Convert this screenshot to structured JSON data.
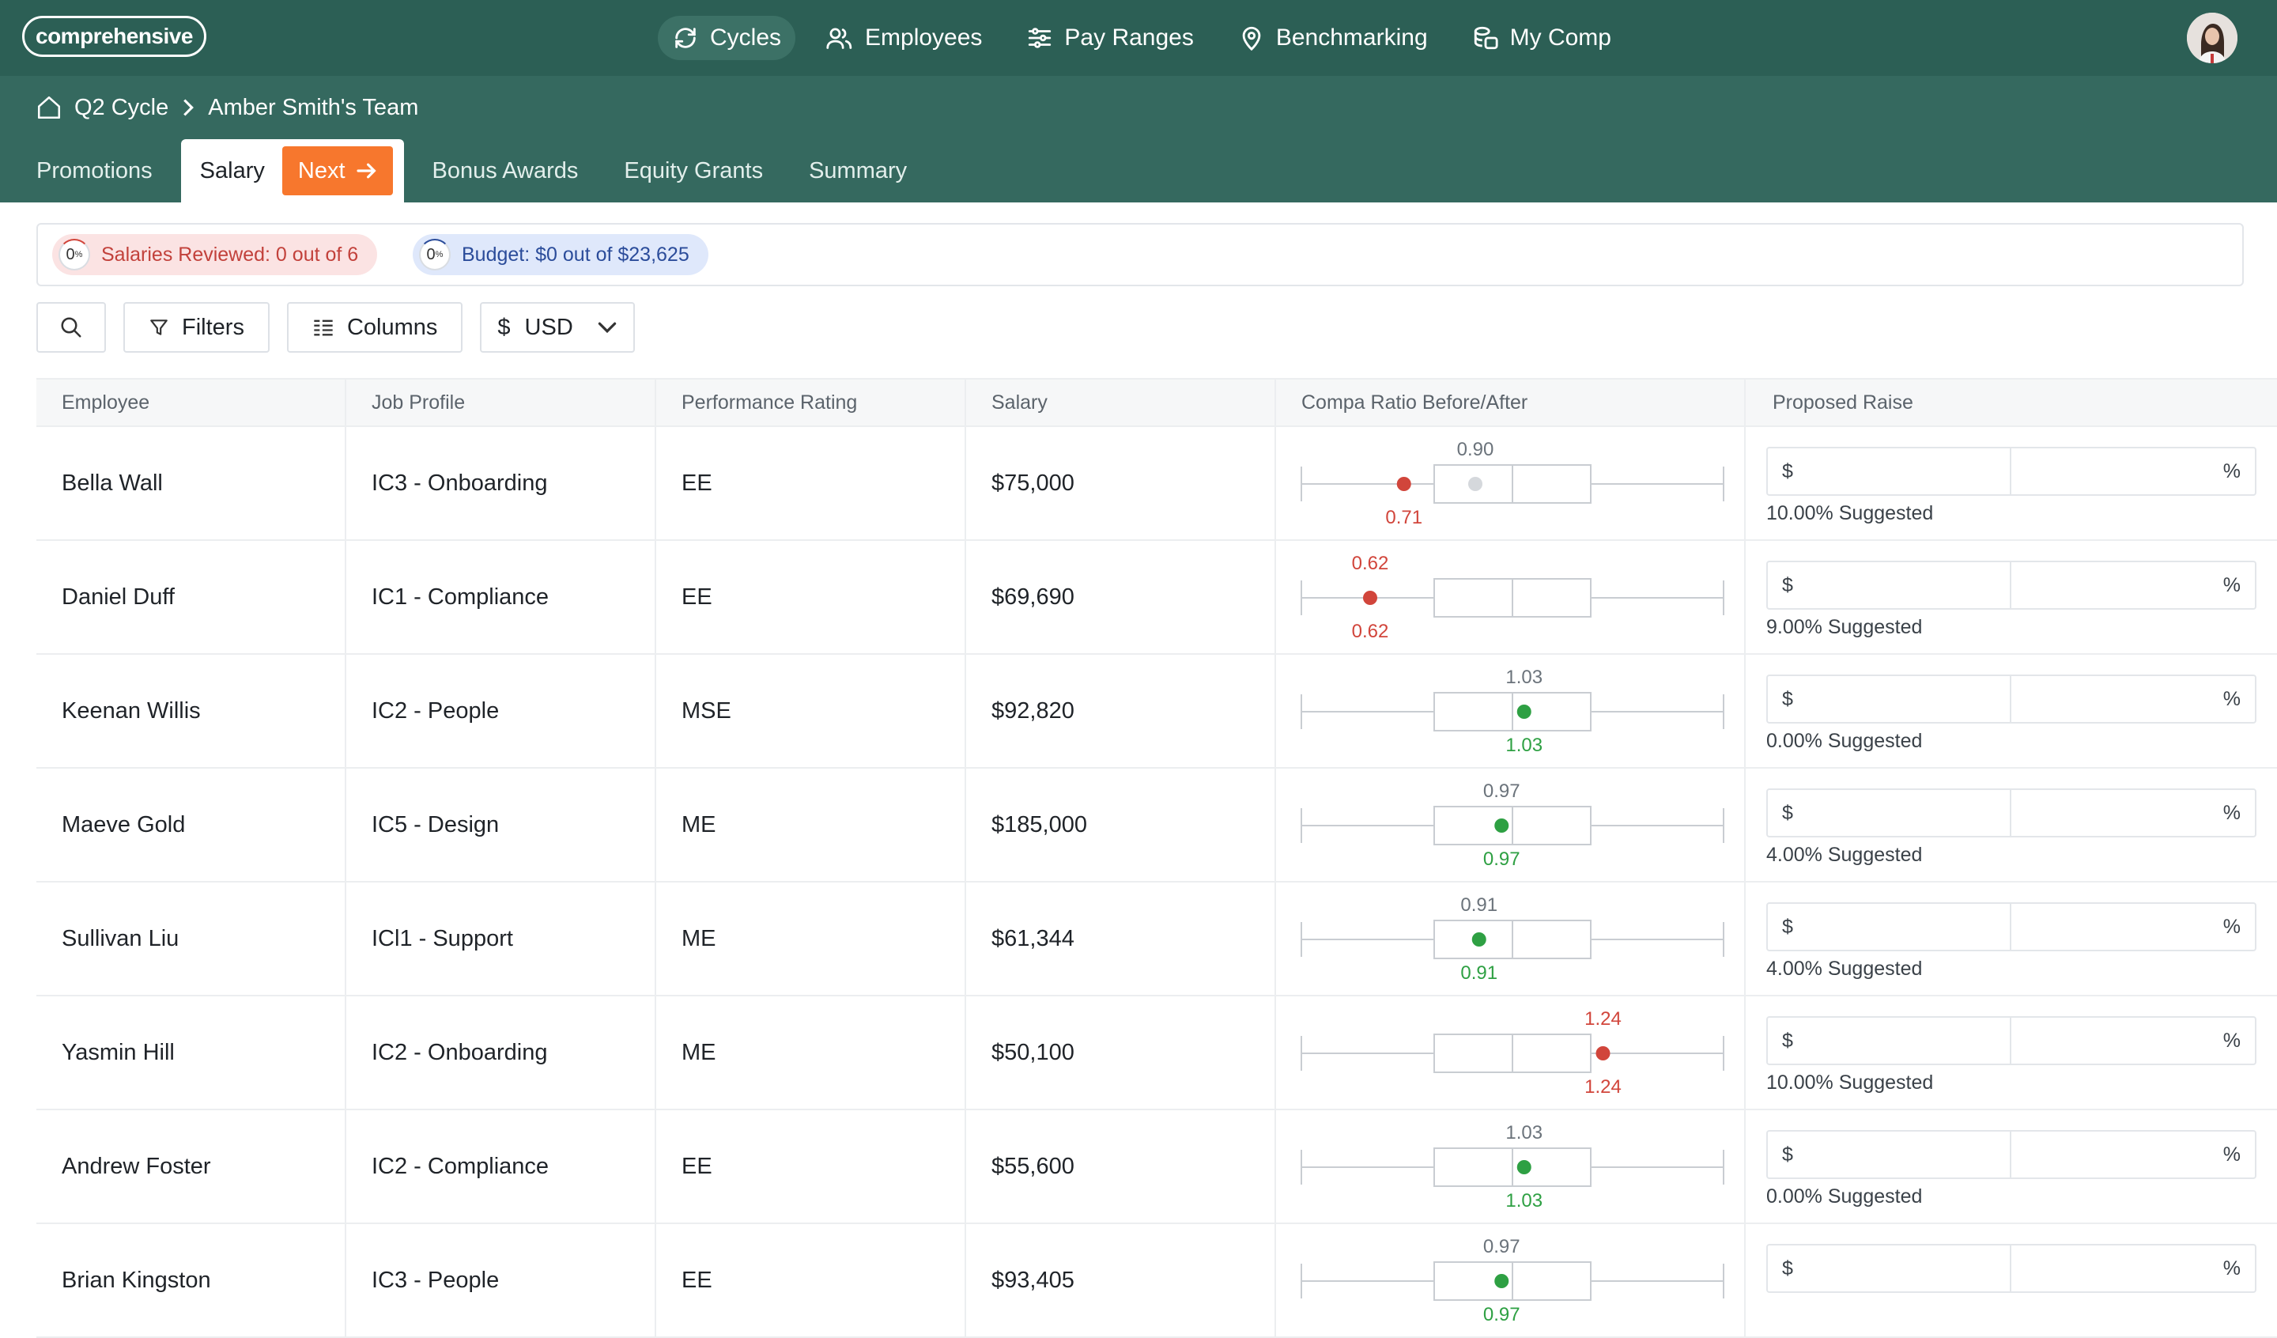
{
  "app": {
    "logo": "comprehensive"
  },
  "nav": [
    {
      "label": "Cycles",
      "icon": "refresh-icon",
      "active": true
    },
    {
      "label": "Employees",
      "icon": "people-icon",
      "active": false
    },
    {
      "label": "Pay Ranges",
      "icon": "sliders-icon",
      "active": false
    },
    {
      "label": "Benchmarking",
      "icon": "location-pin-icon",
      "active": false
    },
    {
      "label": "My Comp",
      "icon": "coins-icon",
      "active": false
    }
  ],
  "breadcrumb": {
    "cycle": "Q2 Cycle",
    "team": "Amber Smith's Team"
  },
  "tabs": {
    "promotions": "Promotions",
    "salary": "Salary",
    "next": "Next",
    "bonus": "Bonus Awards",
    "equity": "Equity Grants",
    "summary": "Summary"
  },
  "status": {
    "reviewed_label": "Salaries Reviewed: 0 out of 6",
    "reviewed_pct": "0",
    "budget_label": "Budget: $0 out of $23,625",
    "budget_pct": "0"
  },
  "toolbar": {
    "filters": "Filters",
    "columns": "Columns",
    "currency": "USD",
    "currency_symbol": "$"
  },
  "columns": [
    "Employee",
    "Job Profile",
    "Performance Rating",
    "Salary",
    "Compa Ratio Before/After",
    "Proposed Raise"
  ],
  "raise_input": {
    "currency_symbol": "$",
    "percent_symbol": "%"
  },
  "colors": {
    "header_bg": "#2c5f55",
    "accent": "#f7772d",
    "ok": "#2ea043",
    "warn": "#d1453b"
  },
  "rows": [
    {
      "employee": "Bella Wall",
      "job_profile": "IC3 - Onboarding",
      "rating": "EE",
      "salary": "$75,000",
      "before": "0.71",
      "after": "0.90",
      "before_value": 0.71,
      "after_value": 0.9,
      "status": "low",
      "suggested": "10.00% Suggested"
    },
    {
      "employee": "Daniel Duff",
      "job_profile": "IC1 - Compliance",
      "rating": "EE",
      "salary": "$69,690",
      "before": "0.62",
      "after": "0.62",
      "before_value": 0.62,
      "after_value": 0.62,
      "status": "low",
      "suggested": "9.00% Suggested"
    },
    {
      "employee": "Keenan Willis",
      "job_profile": "IC2 - People",
      "rating": "MSE",
      "salary": "$92,820",
      "before": "1.03",
      "after": "1.03",
      "before_value": 1.03,
      "after_value": 1.03,
      "status": "ok",
      "suggested": "0.00% Suggested"
    },
    {
      "employee": "Maeve Gold",
      "job_profile": "IC5 - Design",
      "rating": "ME",
      "salary": "$185,000",
      "before": "0.97",
      "after": "0.97",
      "before_value": 0.97,
      "after_value": 0.97,
      "status": "ok",
      "suggested": "4.00% Suggested"
    },
    {
      "employee": "Sullivan Liu",
      "job_profile": "ICl1 - Support",
      "rating": "ME",
      "salary": "$61,344",
      "before": "0.91",
      "after": "0.91",
      "before_value": 0.91,
      "after_value": 0.91,
      "status": "ok",
      "suggested": "4.00% Suggested"
    },
    {
      "employee": "Yasmin Hill",
      "job_profile": "IC2 - Onboarding",
      "rating": "ME",
      "salary": "$50,100",
      "before": "1.24",
      "after": "1.24",
      "before_value": 1.24,
      "after_value": 1.24,
      "status": "high",
      "suggested": "10.00% Suggested"
    },
    {
      "employee": "Andrew Foster",
      "job_profile": "IC2 - Compliance",
      "rating": "EE",
      "salary": "$55,600",
      "before": "1.03",
      "after": "1.03",
      "before_value": 1.03,
      "after_value": 1.03,
      "status": "ok",
      "suggested": "0.00% Suggested"
    },
    {
      "employee": "Brian Kingston",
      "job_profile": "IC3 - People",
      "rating": "EE",
      "salary": "$93,405",
      "before": "0.97",
      "after": "0.97",
      "before_value": 0.97,
      "after_value": 0.97,
      "status": "ok",
      "suggested": ""
    }
  ]
}
